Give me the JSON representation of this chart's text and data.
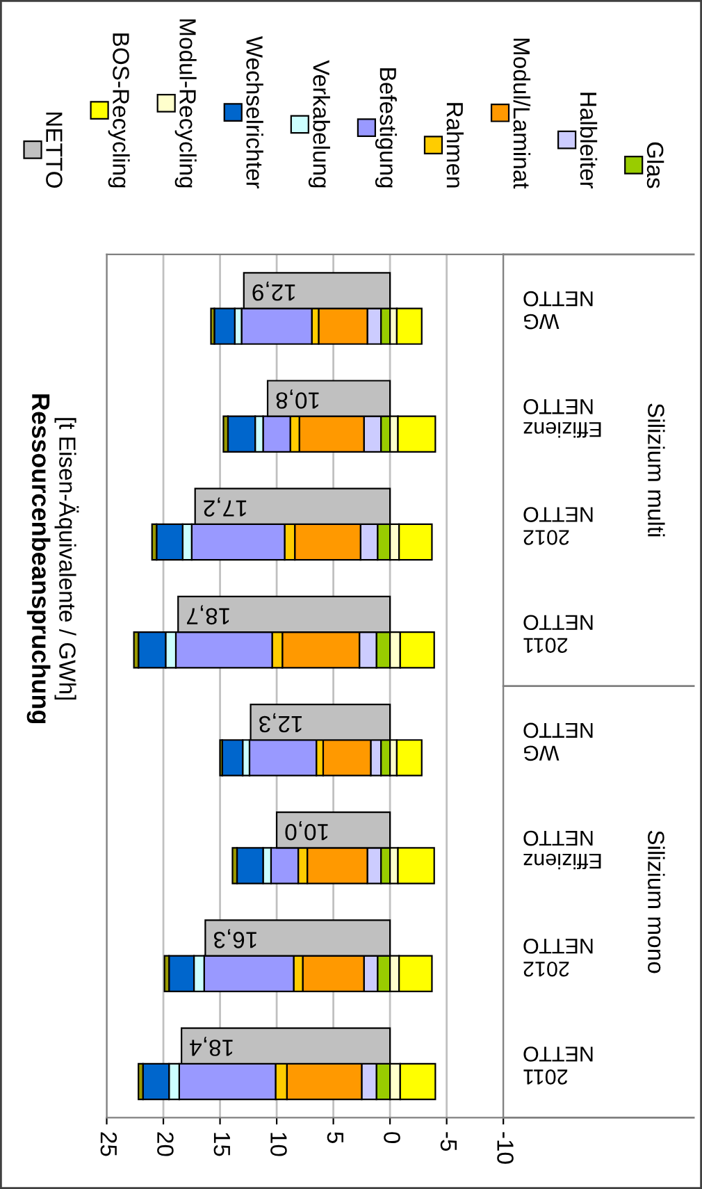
{
  "chart_data": [
    {
      "type": "bar",
      "orientation": "horizontal",
      "stacked": true,
      "title": "Ressourcenbeanspruchung",
      "subtitle": "[t Eisen-Äquivalente / GWh]",
      "categories": [
        "WG\nNETTO",
        "Effizienz\nNETTO",
        "2012\nNETTO",
        "2011\nNETTO",
        "WG\nNETTO",
        "Effizienz\nNETTO",
        "2012\nNETTO",
        "2011\nNETTO"
      ],
      "series": [
        {
          "name": "Glas",
          "color": "#99cc00",
          "values": [
            0.8,
            0.8,
            1.1,
            1.2,
            0.8,
            0.8,
            1.1,
            1.2
          ]
        },
        {
          "name": "Halbleiter",
          "color": "#ccccff",
          "values": [
            1.2,
            1.5,
            1.5,
            1.5,
            0.9,
            1.2,
            1.2,
            1.3
          ]
        },
        {
          "name": "Modul/Laminat",
          "color": "#ff9900",
          "values": [
            4.3,
            5.7,
            5.8,
            6.8,
            4.2,
            5.3,
            5.4,
            6.6
          ]
        },
        {
          "name": "Rahmen",
          "color": "#ffcc00",
          "values": [
            0.6,
            0.8,
            0.9,
            0.9,
            0.6,
            0.8,
            0.8,
            1.0
          ]
        },
        {
          "name": "Befestigung",
          "color": "#9999ff",
          "values": [
            6.2,
            2.4,
            8.2,
            8.5,
            5.9,
            2.4,
            7.9,
            8.5
          ]
        },
        {
          "name": "Verkabelung",
          "color": "#ccffff",
          "values": [
            0.6,
            0.7,
            0.8,
            0.9,
            0.6,
            0.7,
            0.9,
            0.9
          ]
        },
        {
          "name": "Wechselrichter",
          "color": "#0066cc",
          "values": [
            1.8,
            2.4,
            2.3,
            2.4,
            1.8,
            2.3,
            2.2,
            2.3
          ]
        },
        {
          "name": "Modul-Recycling",
          "color": "#ffffcc",
          "values": [
            -0.6,
            -0.7,
            -0.8,
            -0.9,
            -0.6,
            -0.7,
            -0.8,
            -0.9
          ]
        },
        {
          "name": "BOS-Recycling",
          "color": "#ffff00",
          "values": [
            -2.2,
            -3.3,
            -2.9,
            -3.0,
            -2.2,
            -3.2,
            -2.9,
            -3.1
          ]
        },
        {
          "color": "#999900",
          "values": [
            0.3,
            0.4,
            0.4,
            0.4,
            0.2,
            0.4,
            0.4,
            0.4
          ]
        }
      ],
      "xlim": [
        25,
        -10
      ],
      "xticks": [
        25,
        20,
        15,
        10,
        5,
        0,
        -5,
        -10
      ],
      "grid": "x",
      "legend": "top",
      "annotations": [
        "Silizium multi",
        "Silizium mono"
      ]
    },
    {
      "type": "bar",
      "orientation": "horizontal",
      "categories": [
        null,
        null,
        null,
        null,
        null,
        null,
        null,
        null
      ],
      "series": [
        {
          "name": "NETTO",
          "color": "#c0c0c0",
          "values": [
            12.9,
            10.8,
            17.2,
            18.7,
            12.3,
            10.0,
            16.3,
            18.4
          ],
          "value_labels": [
            "12,9",
            "10,8",
            "17,2",
            "18,7",
            "12,3",
            "10,0",
            "16,3",
            "18,4"
          ]
        }
      ],
      "xlim": [
        25,
        -10
      ],
      "tick_labels": false
    }
  ]
}
